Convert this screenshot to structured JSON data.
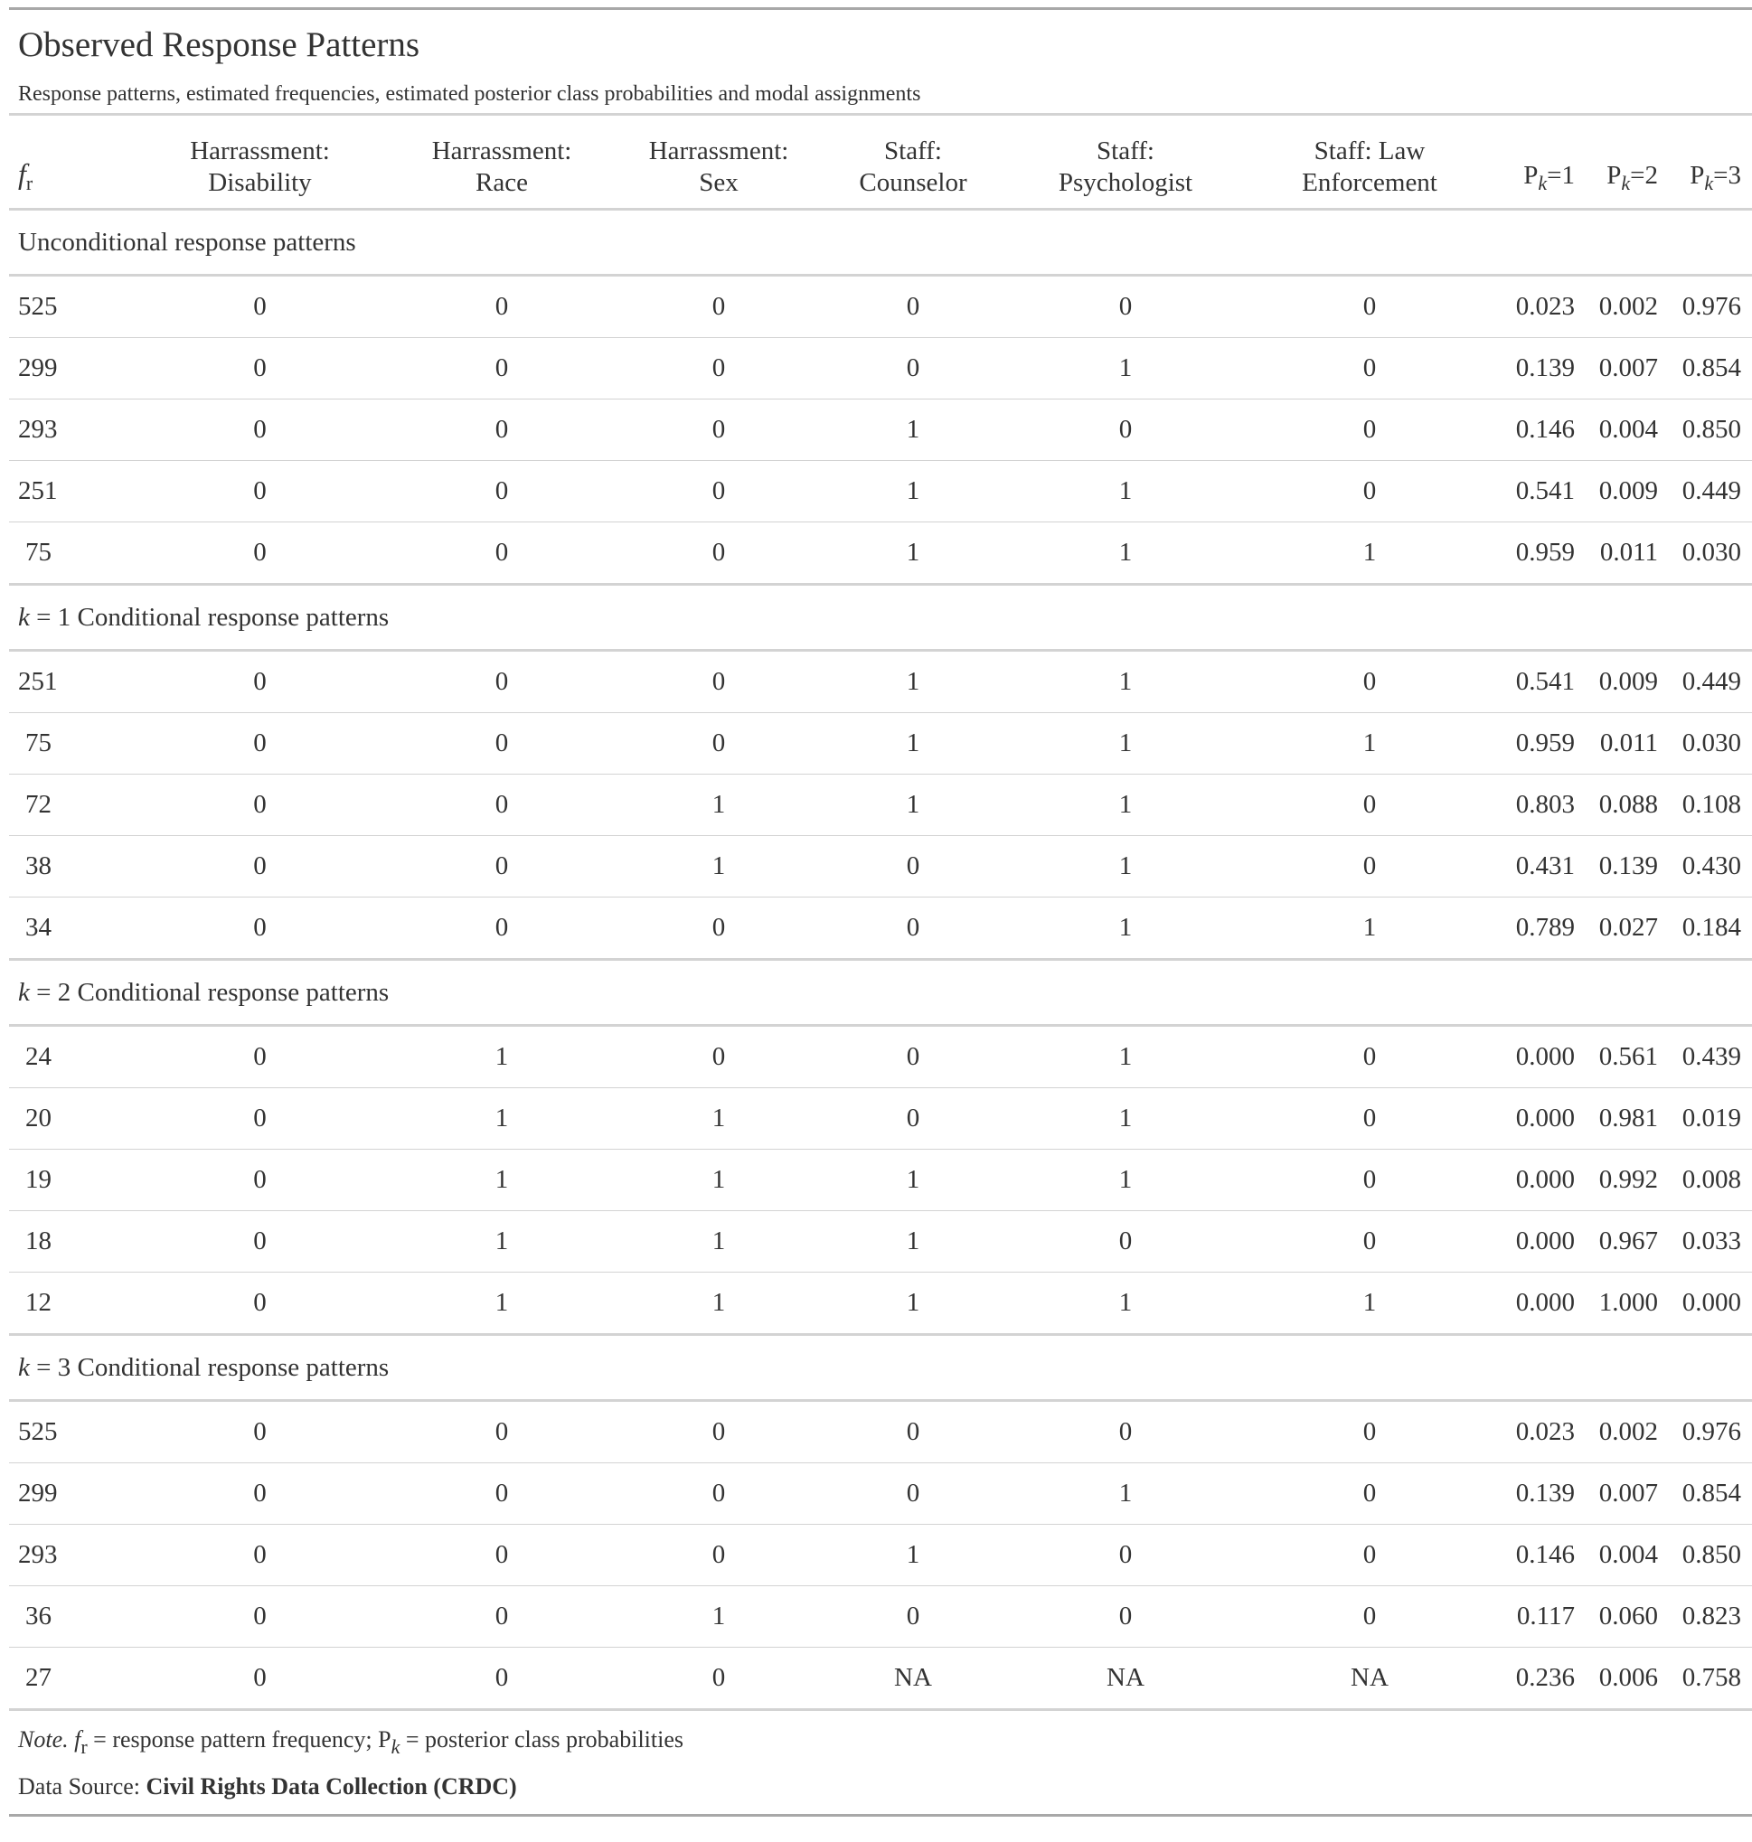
{
  "title": "Observed Response Patterns",
  "subtitle": "Response patterns, estimated frequencies, estimated posterior class probabilities and modal assignments",
  "header": {
    "fr": "f",
    "fr_sub": "r",
    "cols": [
      [
        "Harrassment:",
        "Disability"
      ],
      [
        "Harrassment:",
        "Race"
      ],
      [
        "Harrassment:",
        "Sex"
      ],
      [
        "Staff:",
        "Counselor"
      ],
      [
        "Staff:",
        "Psychologist"
      ],
      [
        "Staff: Law",
        "Enforcement"
      ]
    ],
    "prob_cols": [
      {
        "p": "P",
        "k": "k",
        "eq": "=1"
      },
      {
        "p": "P",
        "k": "k",
        "eq": "=2"
      },
      {
        "p": "P",
        "k": "k",
        "eq": "=3"
      }
    ]
  },
  "groups": [
    {
      "label_k": "",
      "label": "Unconditional response patterns",
      "rows": [
        [
          "525",
          "0",
          "0",
          "0",
          "0",
          "0",
          "0",
          "0.023",
          "0.002",
          "0.976"
        ],
        [
          "299",
          "0",
          "0",
          "0",
          "0",
          "1",
          "0",
          "0.139",
          "0.007",
          "0.854"
        ],
        [
          "293",
          "0",
          "0",
          "0",
          "1",
          "0",
          "0",
          "0.146",
          "0.004",
          "0.850"
        ],
        [
          "251",
          "0",
          "0",
          "0",
          "1",
          "1",
          "0",
          "0.541",
          "0.009",
          "0.449"
        ],
        [
          "75",
          "0",
          "0",
          "0",
          "1",
          "1",
          "1",
          "0.959",
          "0.011",
          "0.030"
        ]
      ]
    },
    {
      "label_k": "k",
      "label": " = 1 Conditional response patterns",
      "rows": [
        [
          "251",
          "0",
          "0",
          "0",
          "1",
          "1",
          "0",
          "0.541",
          "0.009",
          "0.449"
        ],
        [
          "75",
          "0",
          "0",
          "0",
          "1",
          "1",
          "1",
          "0.959",
          "0.011",
          "0.030"
        ],
        [
          "72",
          "0",
          "0",
          "1",
          "1",
          "1",
          "0",
          "0.803",
          "0.088",
          "0.108"
        ],
        [
          "38",
          "0",
          "0",
          "1",
          "0",
          "1",
          "0",
          "0.431",
          "0.139",
          "0.430"
        ],
        [
          "34",
          "0",
          "0",
          "0",
          "0",
          "1",
          "1",
          "0.789",
          "0.027",
          "0.184"
        ]
      ]
    },
    {
      "label_k": "k",
      "label": " = 2 Conditional response patterns",
      "rows": [
        [
          "24",
          "0",
          "1",
          "0",
          "0",
          "1",
          "0",
          "0.000",
          "0.561",
          "0.439"
        ],
        [
          "20",
          "0",
          "1",
          "1",
          "0",
          "1",
          "0",
          "0.000",
          "0.981",
          "0.019"
        ],
        [
          "19",
          "0",
          "1",
          "1",
          "1",
          "1",
          "0",
          "0.000",
          "0.992",
          "0.008"
        ],
        [
          "18",
          "0",
          "1",
          "1",
          "1",
          "0",
          "0",
          "0.000",
          "0.967",
          "0.033"
        ],
        [
          "12",
          "0",
          "1",
          "1",
          "1",
          "1",
          "1",
          "0.000",
          "1.000",
          "0.000"
        ]
      ]
    },
    {
      "label_k": "k",
      "label": " = 3 Conditional response patterns",
      "rows": [
        [
          "525",
          "0",
          "0",
          "0",
          "0",
          "0",
          "0",
          "0.023",
          "0.002",
          "0.976"
        ],
        [
          "299",
          "0",
          "0",
          "0",
          "0",
          "1",
          "0",
          "0.139",
          "0.007",
          "0.854"
        ],
        [
          "293",
          "0",
          "0",
          "0",
          "1",
          "0",
          "0",
          "0.146",
          "0.004",
          "0.850"
        ],
        [
          "36",
          "0",
          "0",
          "1",
          "0",
          "0",
          "0",
          "0.117",
          "0.060",
          "0.823"
        ],
        [
          "27",
          "0",
          "0",
          "0",
          "NA",
          "NA",
          "NA",
          "0.236",
          "0.006",
          "0.758"
        ]
      ]
    }
  ],
  "footnote": {
    "note_label": "Note.",
    "fr": "f",
    "fr_sub": "r",
    "fr_text": " = response pattern frequency; ",
    "pk": "P",
    "pk_sub": "k",
    "pk_text": " = posterior class probabilities"
  },
  "source": {
    "label": "Data Source: ",
    "name": "Civil Rights Data Collection (CRDC)"
  }
}
